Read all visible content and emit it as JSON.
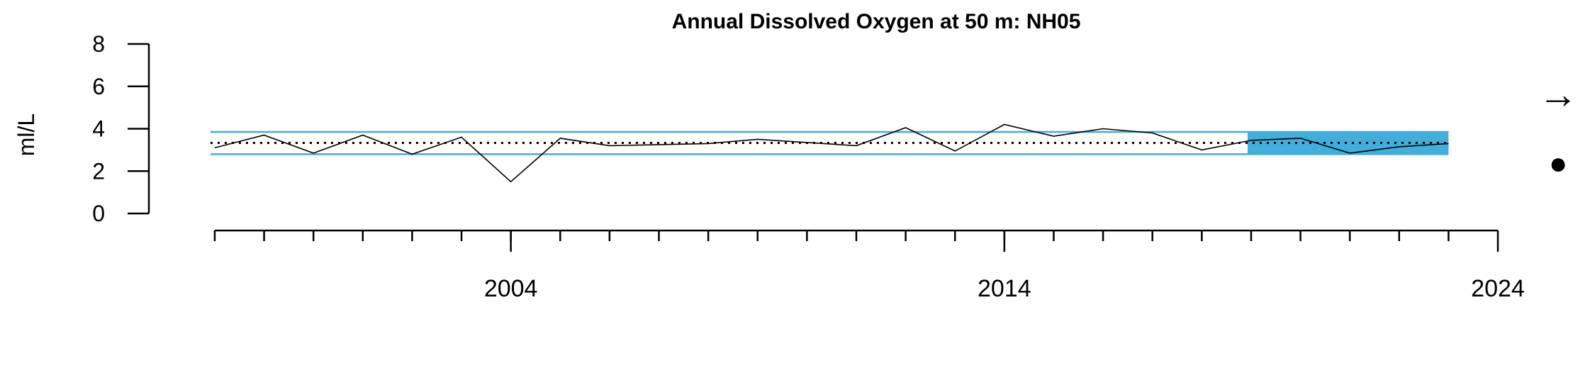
{
  "chart_data": {
    "type": "line",
    "title": "Annual Dissolved Oxygen at 50 m: NH05",
    "xlabel": "",
    "ylabel": "ml/L",
    "ylim": [
      0,
      8
    ],
    "yticks": [
      "0",
      "2",
      "4",
      "6",
      "8"
    ],
    "xlim": [
      1997.8,
      2024
    ],
    "xticks_labeled": [
      2004,
      2014,
      2024
    ],
    "xtick_labels": [
      "2004",
      "2014",
      "2024"
    ],
    "xticks_minor_start": 1998,
    "xticks_minor_end": 2023,
    "grid": false,
    "legend": "none",
    "series": [
      {
        "x": [
          1998,
          1999,
          2000,
          2001,
          2002,
          2003,
          2004,
          2005,
          2006,
          2007,
          2008,
          2009,
          2010,
          2011,
          2012,
          2013,
          2014,
          2015,
          2016,
          2017,
          2018,
          2019,
          2020,
          2021,
          2022,
          2023
        ],
        "y": [
          3.1,
          3.7,
          2.85,
          3.7,
          2.8,
          3.6,
          1.5,
          3.55,
          3.2,
          3.25,
          3.3,
          3.5,
          3.35,
          3.2,
          4.05,
          2.95,
          4.2,
          3.65,
          4.0,
          3.8,
          3.0,
          3.45,
          3.55,
          2.85,
          3.15,
          3.3
        ]
      }
    ],
    "reference_lines": {
      "mean": 3.33,
      "upper": 3.85,
      "lower": 2.8
    },
    "highlight_x_range": [
      2019,
      2023
    ],
    "trend_indicator": "→",
    "status_indicator": "●",
    "colors": {
      "line": "#000000",
      "bands": "#41AEDC",
      "highlight": "#41AEDC",
      "axis": "#000000"
    }
  }
}
